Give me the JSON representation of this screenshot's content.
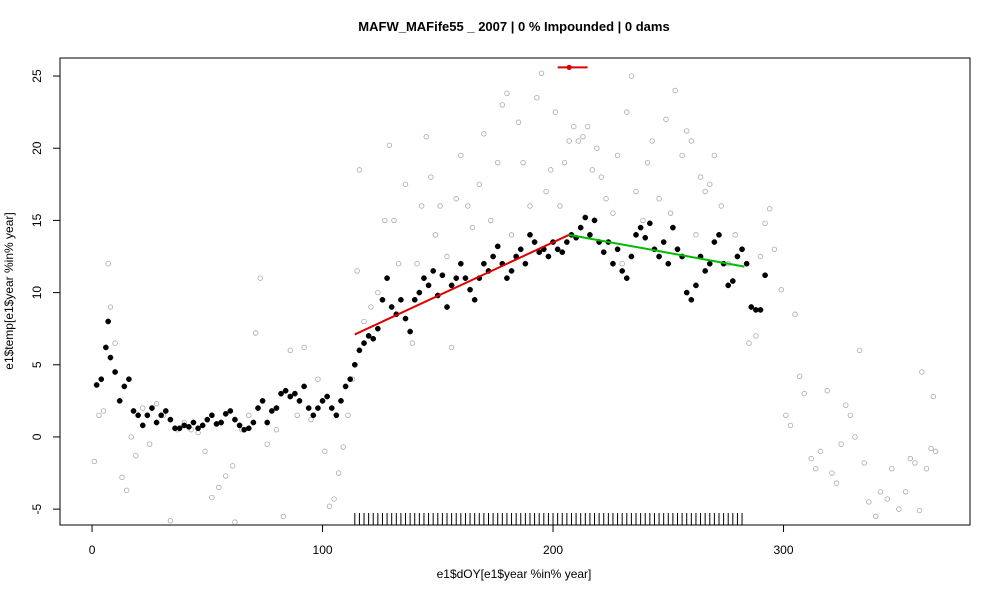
{
  "chart_data": {
    "type": "scatter",
    "title": "MAFW_MAFife55 _ 2007   |   0  % Impounded |  0  dams",
    "x_label": "e1$dOY[e1$year %in% year]",
    "y_label": "e1$temp[e1$year %in% year]",
    "xlim": [
      -13.9,
      380.9
    ],
    "ylim": [
      -6.1,
      26.25
    ],
    "xticks": [
      0,
      100,
      200,
      300
    ],
    "yticks": [
      -5,
      0,
      5,
      10,
      15,
      20,
      25
    ],
    "series": [
      {
        "type": "scatter",
        "marker": "open",
        "color": "#aaaaaa",
        "x": [
          1,
          3,
          5,
          7,
          8,
          10,
          13,
          15,
          17,
          19,
          22,
          25,
          28,
          31,
          34,
          37,
          40,
          43,
          46,
          49,
          52,
          55,
          58,
          61,
          62,
          65,
          68,
          71,
          73,
          76,
          80,
          83,
          86,
          89,
          92,
          95,
          98,
          101,
          103,
          105,
          107,
          109,
          111,
          113,
          115,
          116,
          118,
          121,
          124,
          127,
          129,
          131,
          133,
          136,
          139,
          141,
          143,
          145,
          147,
          149,
          151,
          154,
          156,
          158,
          160,
          163,
          165,
          168,
          170,
          173,
          176,
          178,
          180,
          182,
          185,
          187,
          190,
          193,
          195,
          197,
          199,
          201,
          203,
          205,
          207,
          209,
          211,
          213,
          215,
          217,
          219,
          221,
          223,
          226,
          228,
          230,
          232,
          234,
          236,
          239,
          241,
          243,
          246,
          249,
          251,
          253,
          256,
          258,
          260,
          262,
          264,
          266,
          268,
          270,
          273,
          276,
          279,
          282,
          285,
          288,
          290,
          292,
          294,
          296,
          299,
          301,
          303,
          305,
          307,
          309,
          312,
          314,
          316,
          319,
          321,
          323,
          325,
          327,
          329,
          331,
          333,
          335,
          337,
          340,
          342,
          345,
          347,
          350,
          353,
          355,
          357,
          359,
          360,
          362,
          364,
          365,
          366
        ],
        "values": [
          -1.7,
          1.5,
          1.8,
          12.0,
          9.0,
          6.5,
          -2.8,
          -3.7,
          0.0,
          -1.3,
          2.0,
          -0.5,
          2.3,
          1.5,
          -5.8,
          0.5,
          1.0,
          0.5,
          0.3,
          -1.0,
          -4.2,
          -3.5,
          -2.7,
          -2.0,
          -5.9,
          0.5,
          1.5,
          7.2,
          11.0,
          -0.5,
          0.5,
          -5.5,
          6.0,
          1.5,
          6.2,
          1.2,
          4.0,
          -1.0,
          -4.8,
          -4.3,
          -2.5,
          -0.7,
          1.5,
          4.0,
          11.5,
          18.5,
          8.0,
          9.0,
          10.0,
          15.0,
          20.2,
          15.0,
          12.0,
          17.5,
          6.5,
          12.0,
          16.0,
          20.8,
          18.0,
          14.0,
          16.0,
          12.5,
          6.2,
          16.5,
          19.5,
          16.0,
          14.5,
          17.5,
          21.0,
          15.0,
          19.0,
          23.0,
          23.8,
          14.0,
          21.8,
          19.0,
          16.0,
          23.5,
          25.2,
          17.0,
          18.5,
          22.5,
          16.0,
          19.0,
          20.5,
          21.5,
          20.5,
          20.8,
          21.5,
          18.5,
          20.0,
          18.0,
          16.5,
          15.5,
          19.5,
          12.0,
          22.5,
          25.0,
          17.0,
          15.0,
          19.0,
          20.5,
          16.5,
          22.0,
          15.5,
          24.0,
          19.5,
          21.2,
          20.5,
          14.0,
          18.0,
          17.0,
          17.5,
          19.5,
          16.0,
          12.0,
          14.0,
          13.0,
          6.5,
          7.0,
          12.5,
          14.8,
          15.8,
          13.0,
          10.2,
          1.5,
          0.8,
          8.5,
          4.2,
          3.0,
          -1.5,
          -2.2,
          -1.0,
          3.2,
          -2.5,
          -3.2,
          -0.5,
          2.2,
          1.5,
          0.0,
          6.0,
          -1.8,
          -4.5,
          -5.5,
          -3.8,
          -4.3,
          -2.2,
          -5.0,
          -3.8,
          -1.5,
          -1.8,
          -5.1,
          4.5,
          -2.2,
          -0.8,
          2.8,
          -1.0
        ]
      },
      {
        "type": "scatter",
        "marker": "filled",
        "color": "#000000",
        "x": [
          2,
          4,
          6,
          7,
          8,
          10,
          12,
          14,
          16,
          18,
          20,
          22,
          24,
          26,
          28,
          30,
          32,
          34,
          36,
          38,
          40,
          42,
          44,
          46,
          48,
          50,
          52,
          54,
          56,
          58,
          60,
          62,
          64,
          66,
          68,
          70,
          72,
          74,
          76,
          78,
          80,
          82,
          84,
          86,
          88,
          90,
          92,
          94,
          96,
          98,
          100,
          102,
          104,
          106,
          108,
          110,
          112,
          114,
          116,
          118,
          120,
          122,
          124,
          126,
          128,
          130,
          132,
          134,
          136,
          138,
          140,
          142,
          144,
          146,
          148,
          150,
          152,
          154,
          156,
          158,
          160,
          162,
          164,
          166,
          168,
          170,
          172,
          174,
          176,
          178,
          180,
          182,
          184,
          186,
          188,
          190,
          192,
          194,
          196,
          198,
          200,
          202,
          204,
          206,
          208,
          210,
          212,
          214,
          216,
          218,
          220,
          222,
          224,
          226,
          228,
          230,
          232,
          234,
          236,
          238,
          240,
          242,
          244,
          246,
          248,
          250,
          252,
          254,
          256,
          258,
          260,
          262,
          264,
          266,
          268,
          270,
          272,
          274,
          276,
          278,
          280,
          282,
          284,
          286,
          288,
          290,
          292
        ],
        "values": [
          3.6,
          4.0,
          6.2,
          8.0,
          5.5,
          4.5,
          2.5,
          3.5,
          4.0,
          1.8,
          1.5,
          0.8,
          1.5,
          2.0,
          1.0,
          1.5,
          1.8,
          1.2,
          0.6,
          0.6,
          0.8,
          0.7,
          1.0,
          0.6,
          0.8,
          1.2,
          1.5,
          0.9,
          1.0,
          1.6,
          1.8,
          1.2,
          0.8,
          0.5,
          0.6,
          1.0,
          2.0,
          2.5,
          1.0,
          1.8,
          2.0,
          3.0,
          3.2,
          2.8,
          3.0,
          2.5,
          3.5,
          2.0,
          1.5,
          2.0,
          2.5,
          2.8,
          2.0,
          1.5,
          2.5,
          3.5,
          4.0,
          5.0,
          6.0,
          6.5,
          7.0,
          6.8,
          7.5,
          9.5,
          11.0,
          9.0,
          8.5,
          9.5,
          8.2,
          7.3,
          9.5,
          10.0,
          11.0,
          10.5,
          11.5,
          9.8,
          11.2,
          9.0,
          10.5,
          11.0,
          12.0,
          11.0,
          10.2,
          9.5,
          11.0,
          12.0,
          11.5,
          12.5,
          13.2,
          12.0,
          11.0,
          11.5,
          12.5,
          13.0,
          12.0,
          14.0,
          13.5,
          12.8,
          13.0,
          12.5,
          13.5,
          13.0,
          12.8,
          13.5,
          14.0,
          13.8,
          14.5,
          15.2,
          14.0,
          15.0,
          13.5,
          12.8,
          13.5,
          12.0,
          13.0,
          11.5,
          11.0,
          12.5,
          14.0,
          14.5,
          13.8,
          14.8,
          13.0,
          12.5,
          13.5,
          12.0,
          14.5,
          13.0,
          12.5,
          10.0,
          9.5,
          10.5,
          12.5,
          11.5,
          12.0,
          13.5,
          14.0,
          12.0,
          10.5,
          10.8,
          12.5,
          13.0,
          12.0,
          9.0,
          8.8,
          8.8,
          11.2
        ]
      },
      {
        "type": "line",
        "color": "#dd0000",
        "x": [
          114,
          207
        ],
        "values": [
          7.1,
          14.0
        ]
      },
      {
        "type": "line",
        "color": "#00bb00",
        "x": [
          207,
          283
        ],
        "values": [
          14.0,
          11.8
        ]
      },
      {
        "type": "point_range",
        "color": "#dd0000",
        "x": [
          207
        ],
        "values": [
          25.6
        ],
        "xmin": [
          202
        ],
        "xmax": [
          215
        ]
      }
    ],
    "rug": {
      "color": "#000000",
      "x": [
        114,
        116,
        118,
        120,
        122,
        124,
        126,
        128,
        130,
        132,
        134,
        136,
        138,
        140,
        142,
        144,
        146,
        148,
        150,
        152,
        154,
        156,
        158,
        160,
        162,
        164,
        166,
        168,
        170,
        172,
        174,
        176,
        178,
        180,
        182,
        184,
        186,
        188,
        190,
        192,
        194,
        196,
        198,
        200,
        202,
        204,
        206,
        208,
        210,
        212,
        214,
        216,
        218,
        220,
        222,
        224,
        226,
        228,
        230,
        232,
        234,
        236,
        238,
        240,
        242,
        244,
        246,
        248,
        250,
        252,
        254,
        256,
        258,
        260,
        262,
        264,
        266,
        268,
        270,
        272,
        274,
        276,
        278,
        280,
        282
      ]
    }
  }
}
